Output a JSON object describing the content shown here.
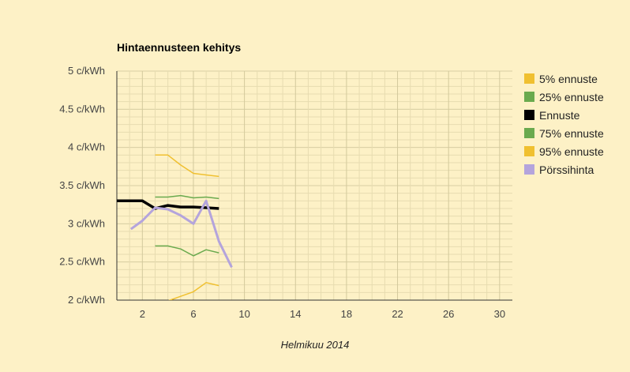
{
  "chart_data": {
    "type": "line",
    "title": "Hintaennusteen kehitys",
    "xlabel": "Helmikuu 2014",
    "ylabel": "",
    "xlim": [
      0,
      31
    ],
    "ylim": [
      2,
      5
    ],
    "x_ticks": [
      2,
      6,
      10,
      14,
      18,
      22,
      26,
      30
    ],
    "y_ticks": [
      {
        "value": 2,
        "label": "2 c/kWh"
      },
      {
        "value": 2.5,
        "label": "2.5 c/kWh"
      },
      {
        "value": 3,
        "label": "3 c/kWh"
      },
      {
        "value": 3.5,
        "label": "3.5 c/kWh"
      },
      {
        "value": 4,
        "label": "4 c/kWh"
      },
      {
        "value": 4.5,
        "label": "4.5 c/kWh"
      },
      {
        "value": 5,
        "label": "5 c/kWh"
      }
    ],
    "grid": true,
    "legend_position": "right",
    "series": [
      {
        "name": "5% ennuste",
        "color": "#f0c030",
        "width": 1.5,
        "points": [
          [
            3,
            1.95
          ],
          [
            4,
            1.99
          ],
          [
            5,
            2.05
          ],
          [
            6,
            2.11
          ],
          [
            7,
            2.23
          ],
          [
            8,
            2.19
          ]
        ]
      },
      {
        "name": "25% ennuste",
        "color": "#6aaa4e",
        "width": 1.5,
        "points": [
          [
            3,
            2.71
          ],
          [
            4,
            2.71
          ],
          [
            5,
            2.67
          ],
          [
            6,
            2.58
          ],
          [
            7,
            2.66
          ],
          [
            8,
            2.62
          ]
        ]
      },
      {
        "name": "Ennuste",
        "color": "#000000",
        "width": 3.5,
        "points": [
          [
            0,
            3.3
          ],
          [
            1,
            3.3
          ],
          [
            2,
            3.3
          ],
          [
            3,
            3.2
          ],
          [
            4,
            3.24
          ],
          [
            5,
            3.22
          ],
          [
            6,
            3.22
          ],
          [
            7,
            3.21
          ],
          [
            8,
            3.2
          ]
        ]
      },
      {
        "name": "75% ennuste",
        "color": "#6aaa4e",
        "width": 1.5,
        "points": [
          [
            3,
            3.35
          ],
          [
            4,
            3.35
          ],
          [
            5,
            3.37
          ],
          [
            6,
            3.34
          ],
          [
            7,
            3.35
          ],
          [
            8,
            3.33
          ]
        ]
      },
      {
        "name": "95% ennuste",
        "color": "#f0c030",
        "width": 1.5,
        "points": [
          [
            3,
            3.9
          ],
          [
            4,
            3.9
          ],
          [
            5,
            3.77
          ],
          [
            6,
            3.66
          ],
          [
            7,
            3.64
          ],
          [
            8,
            3.62
          ]
        ]
      },
      {
        "name": "Pörssihinta",
        "color": "#b4a4dc",
        "width": 3,
        "points": [
          [
            1.1,
            2.93
          ],
          [
            2,
            3.04
          ],
          [
            3,
            3.21
          ],
          [
            4,
            3.19
          ],
          [
            5,
            3.11
          ],
          [
            6,
            3.0
          ],
          [
            7,
            3.3
          ],
          [
            8,
            2.77
          ],
          [
            9,
            2.43
          ]
        ]
      }
    ]
  }
}
